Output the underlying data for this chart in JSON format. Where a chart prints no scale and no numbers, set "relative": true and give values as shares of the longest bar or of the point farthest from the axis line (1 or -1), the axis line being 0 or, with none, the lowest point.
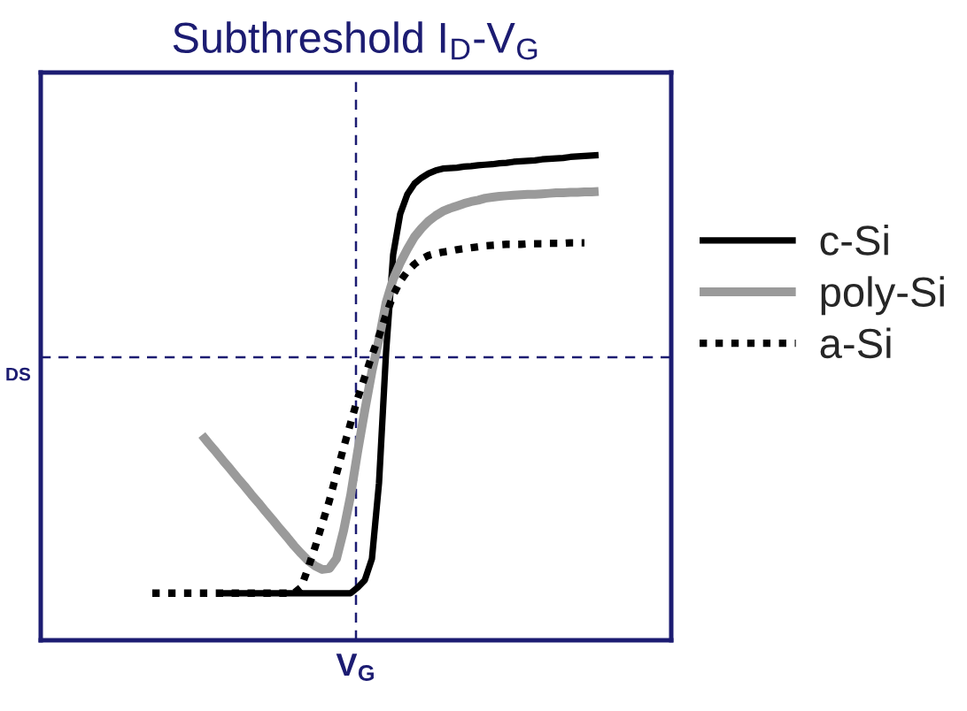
{
  "chart_data": {
    "type": "line",
    "title": "Subthreshold I$_{D}$-V$_{G}$",
    "xlabel": "V$_{G}$",
    "relative": true,
    "legend": "right",
    "categories": [
      null,
      null,
      null,
      null,
      null,
      null,
      null,
      null,
      null,
      null,
      null,
      null,
      null,
      null,
      null,
      null,
      null,
      null,
      null,
      null,
      null,
      null,
      null,
      null,
      null,
      null,
      null,
      null,
      null,
      null,
      null,
      null,
      null,
      null,
      null,
      null,
      null,
      null,
      null,
      null,
      null,
      null,
      null,
      null,
      null,
      null,
      null,
      null,
      null,
      null,
      null,
      null,
      null,
      null,
      null,
      null,
      null,
      null,
      null,
      null,
      null,
      null,
      null,
      null,
      null,
      null,
      null,
      null,
      null,
      null,
      null,
      null,
      null,
      null,
      null,
      null,
      null,
      null,
      null,
      null,
      null,
      null,
      null,
      null,
      null,
      null,
      null,
      null,
      null
    ],
    "ref_lines": [
      {
        "axis": "y",
        "value": 0.583,
        "label": "DS",
        "color": "#1c1c72",
        "line_style": "dashed"
      }
    ],
    "series": [
      {
        "name": "c-Si",
        "color": "#000000",
        "line_style": "solid",
        "values": [
          null,
          null,
          null,
          null,
          null,
          null,
          null,
          null,
          null,
          null,
          null,
          null,
          null,
          null,
          null,
          null,
          null,
          null,
          null,
          null,
          null,
          null,
          null,
          null,
          null,
          0.097,
          0.097,
          0.097,
          0.097,
          0.097,
          0.097,
          0.097,
          0.097,
          0.097,
          0.097,
          0.097,
          0.097,
          0.097,
          0.097,
          0.097,
          0.097,
          0.097,
          0.097,
          0.097,
          0.109,
          0.124,
          0.168,
          0.324,
          0.594,
          0.795,
          0.879,
          0.919,
          0.941,
          0.953,
          0.962,
          0.968,
          0.972,
          0.973,
          0.974,
          0.976,
          0.977,
          0.979,
          0.98,
          0.981,
          0.983,
          0.984,
          0.986,
          0.987,
          0.988,
          0.989,
          0.991,
          0.992,
          0.993,
          0.994,
          0.996,
          0.997,
          0.998,
          0.999,
          1,
          null,
          null,
          null,
          null,
          null,
          null,
          null,
          null,
          null,
          null
        ]
      },
      {
        "name": "poly-Si",
        "color": "#9a9a9a",
        "line_style": "solid",
        "values": [
          null,
          null,
          null,
          null,
          null,
          null,
          null,
          null,
          null,
          null,
          null,
          null,
          null,
          null,
          null,
          null,
          null,
          null,
          null,
          null,
          null,
          null,
          0.423,
          0.405,
          0.388,
          0.37,
          0.353,
          0.335,
          0.318,
          0.3,
          0.283,
          0.265,
          0.248,
          0.23,
          0.213,
          0.195,
          0.179,
          0.164,
          0.153,
          0.146,
          0.148,
          0.168,
          0.226,
          0.299,
          0.39,
          0.474,
          0.554,
          0.62,
          0.696,
          0.744,
          0.778,
          0.806,
          0.831,
          0.849,
          0.864,
          0.875,
          0.884,
          0.89,
          0.895,
          0.9,
          0.904,
          0.907,
          0.911,
          0.913,
          0.915,
          0.916,
          0.917,
          0.918,
          0.919,
          0.919,
          0.92,
          0.921,
          0.922,
          0.922,
          0.923,
          0.923,
          0.924,
          0.924,
          0.925,
          null,
          null,
          null,
          null,
          null,
          null,
          null,
          null,
          null,
          null
        ]
      },
      {
        "name": "a-Si",
        "color": "#000000",
        "line_style": "dotted",
        "values": [
          null,
          null,
          null,
          null,
          null,
          null,
          null,
          null,
          null,
          null,
          null,
          null,
          null,
          null,
          null,
          0.097,
          0.097,
          0.097,
          0.097,
          0.097,
          0.097,
          0.097,
          0.097,
          0.097,
          0.097,
          0.097,
          0.097,
          0.097,
          0.097,
          0.097,
          0.097,
          0.097,
          0.097,
          0.097,
          0.097,
          0.097,
          0.109,
          0.149,
          0.193,
          0.241,
          0.288,
          0.343,
          0.397,
          0.448,
          0.499,
          0.543,
          0.587,
          0.627,
          0.671,
          0.711,
          0.74,
          0.76,
          0.775,
          0.786,
          0.793,
          0.797,
          0.8,
          0.802,
          0.805,
          0.807,
          0.809,
          0.811,
          0.813,
          0.814,
          0.815,
          0.816,
          0.816,
          0.816,
          0.817,
          0.817,
          0.817,
          0.818,
          0.818,
          0.818,
          0.819,
          0.819,
          0.819,
          null,
          null,
          null,
          null,
          null,
          null,
          null,
          null,
          null,
          null,
          null,
          null
        ]
      }
    ]
  }
}
